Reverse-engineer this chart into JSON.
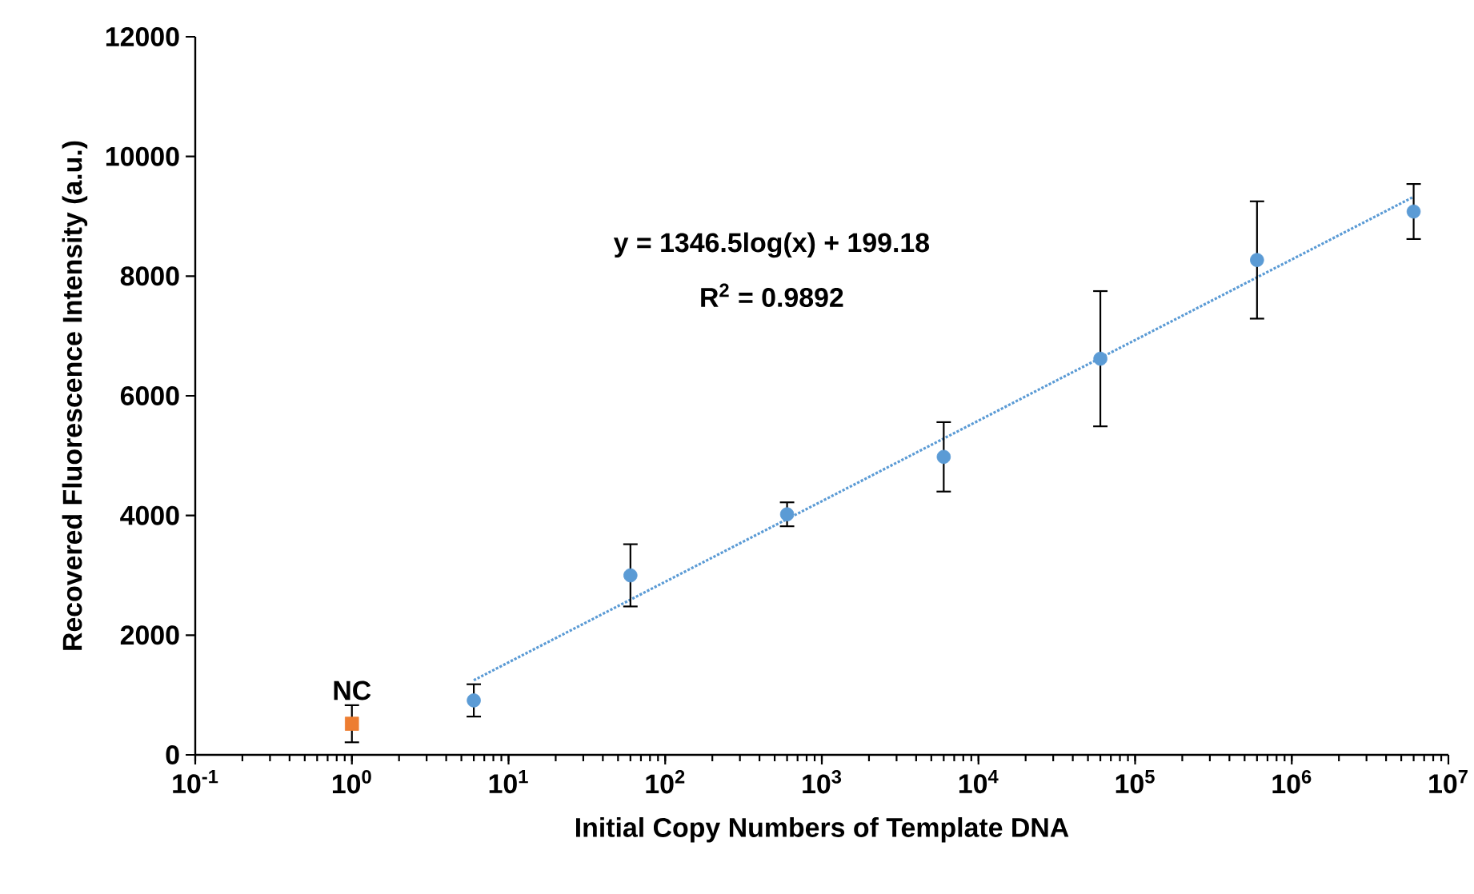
{
  "chart_data": {
    "type": "scatter",
    "xlabel": "Initial Copy Numbers of Template DNA",
    "ylabel": "Recovered Fluorescence Intensity (a.u.)",
    "annotations": [
      "y = 1346.5log(x) + 199.18",
      "R$^{2}$ = 0.9892"
    ],
    "log": "x",
    "xlim": [
      0.1,
      10000000
    ],
    "xticks": [
      {
        "value": 0.1,
        "label": "10$^{-1}$"
      },
      {
        "value": 1,
        "label": "10$^{0}$"
      },
      {
        "value": 10,
        "label": "10$^{1}$"
      },
      {
        "value": 100,
        "label": "10$^{2}$"
      },
      {
        "value": 1000,
        "label": "10$^{3}$"
      },
      {
        "value": 10000,
        "label": "10$^{4}$"
      },
      {
        "value": 100000,
        "label": "10$^{5}$"
      },
      {
        "value": 1000000,
        "label": "10$^{6}$"
      },
      {
        "value": 10000000,
        "label": "10$^{7}$"
      }
    ],
    "ylim": [
      0,
      12000
    ],
    "yticks": [
      0,
      2000,
      4000,
      6000,
      8000,
      10000,
      12000
    ],
    "grid": false,
    "legend": false,
    "series": [
      {
        "type": "line",
        "color": "#5b9bd5",
        "marker": "none",
        "line_style": "dotted",
        "x": [
          6,
          6000000
        ],
        "values": [
          1247,
          9326
        ]
      },
      {
        "color": "#5b9bd5",
        "marker": "circle",
        "x": [
          6,
          60,
          600,
          6000,
          60000,
          600000,
          6000000
        ],
        "values": [
          910,
          3000,
          4020,
          4980,
          6620,
          8270,
          9080
        ],
        "errors": [
          270,
          520,
          200,
          580,
          1130,
          980,
          460
        ]
      },
      {
        "name": "NC",
        "color": "#ed7d31",
        "marker": "square",
        "x": [
          1
        ],
        "values": [
          520
        ],
        "errors": [
          310
        ]
      }
    ]
  }
}
